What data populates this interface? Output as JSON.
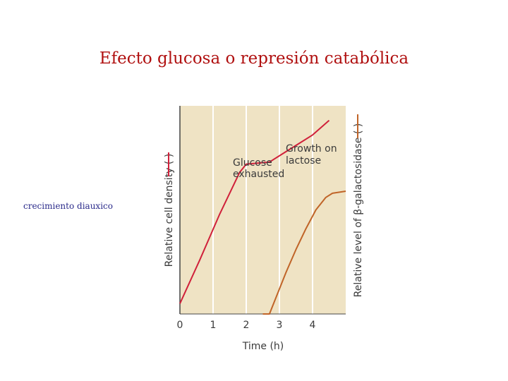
{
  "slide": {
    "title": "Efecto glucosa o represión catabólica",
    "side_label": "crecimiento diauxico"
  },
  "chart_data": {
    "type": "line",
    "xlabel": "Time (h)",
    "ylabel_left": "Relative cell density (",
    "ylabel_left_suffix": ")",
    "ylabel_right": "Relative level of β-galactosidase (",
    "ylabel_right_suffix": ")",
    "x_ticks": [
      "0",
      "1",
      "2",
      "3",
      "4"
    ],
    "xlim": [
      0,
      5
    ],
    "ylim": [
      0,
      1
    ],
    "grid": "vertical",
    "background_color": "#efe3c4",
    "series": [
      {
        "axis": "left",
        "color": "#d0203a",
        "x": [
          0,
          0.6,
          1.2,
          1.8,
          2.0,
          2.7,
          3.2,
          3.6,
          4.0,
          4.5
        ],
        "y": [
          0.05,
          0.26,
          0.48,
          0.68,
          0.72,
          0.73,
          0.78,
          0.82,
          0.86,
          0.93
        ]
      },
      {
        "axis": "right",
        "color": "#c06428",
        "x": [
          2.5,
          2.7,
          2.9,
          3.2,
          3.5,
          3.8,
          4.1,
          4.4,
          4.6,
          5.0
        ],
        "y": [
          0.0,
          0.0,
          0.08,
          0.2,
          0.31,
          0.41,
          0.5,
          0.56,
          0.58,
          0.59
        ]
      }
    ],
    "annotations": [
      {
        "id": "glucose-exhausted",
        "lines": [
          "Glucose",
          "exhausted"
        ],
        "x": 2.0,
        "y": 0.72
      },
      {
        "id": "growth-on-lactose",
        "lines": [
          "Growth on",
          "lactose"
        ],
        "x": 3.2,
        "y": 0.78
      }
    ]
  }
}
